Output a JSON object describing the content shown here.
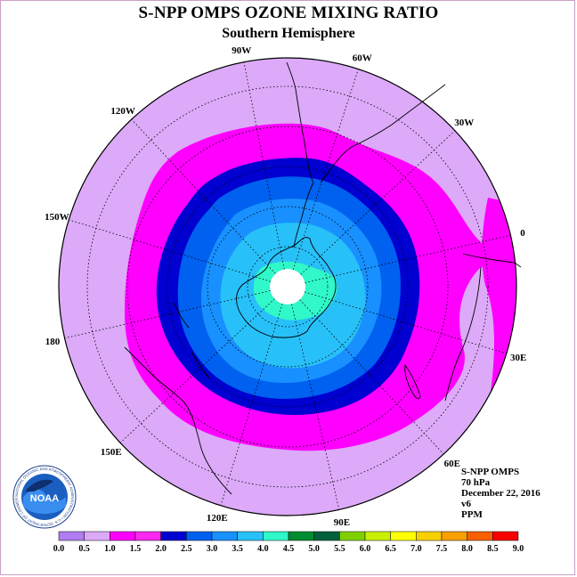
{
  "title": "S-NPP OMPS OZONE MIXING RATIO",
  "subtitle": "Southern Hemisphere",
  "longitude_labels": [
    "90W",
    "60W",
    "30W",
    "0",
    "30E",
    "60E",
    "90E",
    "120E",
    "150E",
    "180",
    "150W",
    "120W"
  ],
  "info": {
    "instrument": "S-NPP OMPS",
    "level": "70 hPa",
    "date": "December 22, 2016",
    "version": "v6",
    "units": "PPM"
  },
  "logo": {
    "text": "NOAA",
    "ring_text": "NATIONAL OCEANIC AND ATMOSPHERIC ADMINISTRATION • U.S. DEPARTMENT OF COMMERCE"
  },
  "colorbar": {
    "ticks": [
      "0.0",
      "0.5",
      "1.0",
      "1.5",
      "2.0",
      "2.5",
      "3.0",
      "3.5",
      "4.0",
      "4.5",
      "5.0",
      "5.5",
      "6.0",
      "6.5",
      "7.0",
      "7.5",
      "8.0",
      "8.5",
      "9.0"
    ],
    "colors": [
      "#b07cf0",
      "#dca8f8",
      "#ff00ff",
      "#ff28f0",
      "#0000d0",
      "#0060f0",
      "#1890ff",
      "#28c0f8",
      "#30f8c8",
      "#008c30",
      "#00603c",
      "#80d000",
      "#c8f000",
      "#ffff00",
      "#f8d000",
      "#f8a000",
      "#f86000",
      "#f80000",
      "#8c5028"
    ]
  },
  "map_colors": {
    "land_outline": "#000000",
    "background_field": "#dcaaf8",
    "level_1": "#ff00ff",
    "level_2": "#0000d0",
    "level_3": "#0060f0",
    "level_4": "#1890ff",
    "level_5": "#28c0f8",
    "level_6": "#30f8c8",
    "pole_hole": "#ffffff"
  }
}
